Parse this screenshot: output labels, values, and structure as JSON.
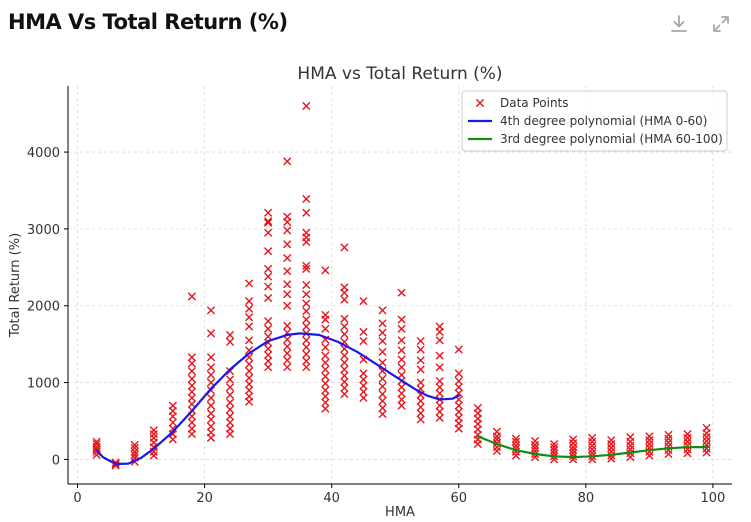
{
  "header": {
    "title": "HMA Vs Total Return (%)",
    "download_icon": "download-icon",
    "expand_icon": "expand-icon"
  },
  "chart_data": {
    "type": "scatter",
    "title": "HMA vs Total Return (%)",
    "xlabel": "HMA",
    "ylabel": "Total Return (%)",
    "xlim": [
      -1.5,
      103
    ],
    "ylim": [
      -320,
      4860
    ],
    "xticks": [
      0,
      20,
      40,
      60,
      80,
      100
    ],
    "yticks": [
      0,
      1000,
      2000,
      3000,
      4000
    ],
    "grid": true,
    "legend_position": "top-right",
    "colors": {
      "points": "#e8141c",
      "poly4": "#1a1ae6",
      "poly3": "#118c11",
      "axis": "#000000",
      "grid": "#d9d9d9"
    },
    "series": [
      {
        "name": "Data Points",
        "kind": "scatter",
        "marker": "x",
        "points": [
          {
            "hma": 3,
            "values": [
              60,
              100,
              130,
              160,
              200,
              230
            ]
          },
          {
            "hma": 6,
            "values": [
              -80,
              -60,
              -40
            ]
          },
          {
            "hma": 9,
            "values": [
              -30,
              20,
              60,
              100,
              150,
              190
            ]
          },
          {
            "hma": 12,
            "values": [
              50,
              100,
              160,
              220,
              280,
              330,
              380
            ]
          },
          {
            "hma": 15,
            "values": [
              260,
              330,
              400,
              480,
              560,
              630,
              700
            ]
          },
          {
            "hma": 18,
            "values": [
              330,
              400,
              480,
              560,
              640,
              720,
              800,
              880,
              960,
              1050,
              1150,
              1250,
              1330,
              2120
            ]
          },
          {
            "hma": 21,
            "values": [
              280,
              350,
              430,
              520,
              600,
              700,
              800,
              900,
              1000,
              1100,
              1200,
              1330,
              1640,
              1940
            ]
          },
          {
            "hma": 24,
            "values": [
              330,
              400,
              480,
              560,
              650,
              740,
              840,
              940,
              1040,
              1150,
              1530,
              1620
            ]
          },
          {
            "hma": 27,
            "values": [
              750,
              820,
              900,
              980,
              1060,
              1150,
              1240,
              1330,
              1420,
              1550,
              1730,
              1850,
              1960,
              2060,
              2290
            ]
          },
          {
            "hma": 30,
            "values": [
              1200,
              1280,
              1360,
              1440,
              1520,
              1600,
              1700,
              1800,
              2100,
              2250,
              2380,
              2480,
              2710,
              2950,
              3080,
              3100,
              3210
            ]
          },
          {
            "hma": 33,
            "values": [
              1200,
              1290,
              1380,
              1470,
              1560,
              1650,
              1740,
              2000,
              2150,
              2280,
              2450,
              2620,
              2800,
              2980,
              3090,
              3160,
              3880
            ]
          },
          {
            "hma": 36,
            "values": [
              1200,
              1280,
              1370,
              1460,
              1550,
              1640,
              1730,
              1820,
              1930,
              2030,
              2150,
              2270,
              2480,
              2520,
              2830,
              2890,
              2950,
              3210,
              3390,
              4600
            ]
          },
          {
            "hma": 39,
            "values": [
              660,
              740,
              820,
              900,
              990,
              1080,
              1170,
              1260,
              1350,
              1460,
              1560,
              1700,
              1820,
              1880,
              2460
            ]
          },
          {
            "hma": 42,
            "values": [
              850,
              930,
              1010,
              1090,
              1170,
              1260,
              1350,
              1440,
              1530,
              1630,
              1730,
              1830,
              2080,
              2170,
              2240,
              2760
            ]
          },
          {
            "hma": 45,
            "values": [
              800,
              880,
              960,
              1040,
              1120,
              1300,
              1540,
              1660,
              2060
            ]
          },
          {
            "hma": 48,
            "values": [
              590,
              670,
              760,
              850,
              950,
              1050,
              1150,
              1260,
              1400,
              1540,
              1650,
              1770,
              1940
            ]
          },
          {
            "hma": 51,
            "values": [
              700,
              780,
              860,
              940,
              1020,
              1100,
              1200,
              1300,
              1420,
              1550,
              1700,
              1820,
              2170
            ]
          },
          {
            "hma": 54,
            "values": [
              520,
              600,
              680,
              760,
              840,
              920,
              1000,
              1170,
              1290,
              1430,
              1540
            ]
          },
          {
            "hma": 57,
            "values": [
              540,
              620,
              700,
              780,
              860,
              940,
              1020,
              1200,
              1350,
              1550,
              1660,
              1730
            ]
          },
          {
            "hma": 60,
            "values": [
              400,
              470,
              540,
              620,
              700,
              780,
              860,
              940,
              1020,
              1120,
              1430
            ]
          },
          {
            "hma": 63,
            "values": [
              200,
              260,
              320,
              390,
              460,
              530,
              600,
              670
            ]
          },
          {
            "hma": 66,
            "values": [
              110,
              160,
              210,
              260,
              300,
              360
            ]
          },
          {
            "hma": 69,
            "values": [
              50,
              100,
              140,
              180,
              230,
              270
            ]
          },
          {
            "hma": 72,
            "values": [
              30,
              70,
              110,
              150,
              190,
              240
            ]
          },
          {
            "hma": 75,
            "values": [
              0,
              40,
              80,
              120,
              160,
              200
            ]
          },
          {
            "hma": 78,
            "values": [
              0,
              40,
              80,
              120,
              160,
              210,
              260
            ]
          },
          {
            "hma": 81,
            "values": [
              0,
              40,
              80,
              130,
              180,
              230,
              280
            ]
          },
          {
            "hma": 84,
            "values": [
              10,
              50,
              100,
              150,
              200,
              250
            ]
          },
          {
            "hma": 87,
            "values": [
              30,
              80,
              130,
              180,
              230,
              290
            ]
          },
          {
            "hma": 90,
            "values": [
              50,
              100,
              150,
              200,
              250,
              300
            ]
          },
          {
            "hma": 93,
            "values": [
              70,
              120,
              170,
              220,
              270,
              320
            ]
          },
          {
            "hma": 96,
            "values": [
              80,
              130,
              180,
              230,
              280,
              330
            ]
          },
          {
            "hma": 99,
            "values": [
              90,
              140,
              190,
              240,
              290,
              340,
              410
            ]
          }
        ]
      },
      {
        "name": "4th degree polynomial (HMA 0-60)",
        "kind": "line",
        "x": [
          3,
          4,
          6,
          8,
          10,
          12,
          15,
          18,
          21,
          24,
          27,
          30,
          33,
          35,
          38,
          41,
          44,
          47,
          50,
          53,
          55,
          57,
          59,
          60
        ],
        "y": [
          120,
          30,
          -60,
          -55,
          20,
          140,
          360,
          630,
          920,
          1170,
          1380,
          1540,
          1620,
          1640,
          1620,
          1530,
          1400,
          1240,
          1080,
          920,
          830,
          780,
          790,
          830
        ]
      },
      {
        "name": "3rd degree polynomial (HMA 60-100)",
        "kind": "line",
        "x": [
          63,
          66,
          69,
          72,
          75,
          78,
          81,
          84,
          87,
          90,
          93,
          96,
          99
        ],
        "y": [
          300,
          200,
          120,
          70,
          40,
          30,
          40,
          60,
          90,
          120,
          145,
          160,
          160
        ]
      }
    ]
  }
}
